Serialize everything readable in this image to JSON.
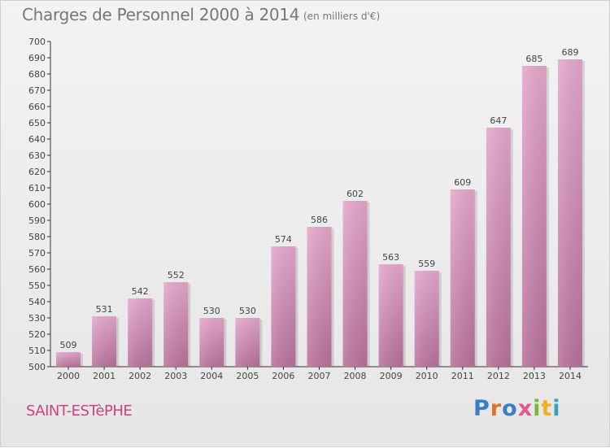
{
  "header": {
    "title": "Charges de Personnel 2000 à 2014",
    "subtitle": "(en milliers d'€)"
  },
  "footer": {
    "place": "SAINT-ESTèPHE",
    "logo": "Proxiti"
  },
  "colors": {
    "bar_top": "#e6a8cc",
    "bar_bottom": "#b8739a",
    "place_text": "#c8457e",
    "logo_letters": [
      "#3a7fc4",
      "#e0702a",
      "#3a7fc4",
      "#e05a8a",
      "#7ab83a",
      "#f0b020",
      "#3a9fc4"
    ]
  },
  "chart_data": {
    "type": "bar",
    "title": "Charges de Personnel 2000 à 2014",
    "subtitle": "(en milliers d'€)",
    "categories": [
      "2000",
      "2001",
      "2002",
      "2003",
      "2004",
      "2005",
      "2006",
      "2007",
      "2008",
      "2009",
      "2010",
      "2011",
      "2012",
      "2013",
      "2014"
    ],
    "values": [
      509,
      531,
      542,
      552,
      530,
      530,
      574,
      586,
      602,
      563,
      559,
      609,
      647,
      685,
      689
    ],
    "ylim": [
      500,
      700
    ],
    "ytick_step": 10,
    "grid": false,
    "legend": "none",
    "xlabel": "",
    "ylabel": ""
  }
}
